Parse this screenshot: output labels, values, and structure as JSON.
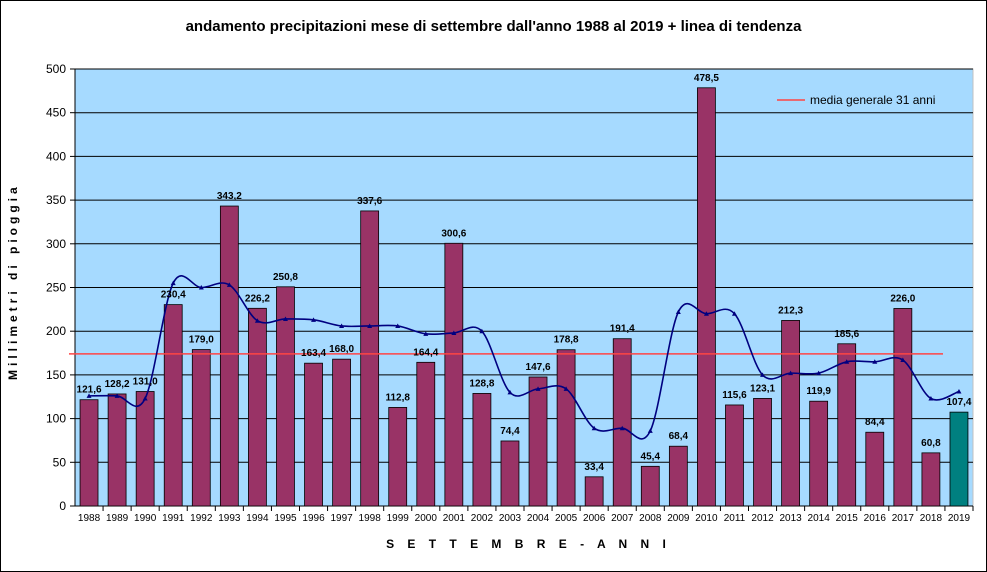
{
  "chart_data": {
    "type": "bar",
    "title": "andamento precipitazioni mese di settembre dall'anno 1988 al 2019 + linea di tendenza",
    "xlabel": "S E T T E M B R E - A N N I",
    "ylabel": "Millimetri di pioggia",
    "ylim": [
      0,
      500
    ],
    "yticks": [
      "0",
      "50",
      "100",
      "150",
      "200",
      "250",
      "300",
      "350",
      "400",
      "450",
      "500"
    ],
    "grid": true,
    "legend_position": "top-right",
    "categories": [
      "1988",
      "1989",
      "1990",
      "1991",
      "1992",
      "1993",
      "1994",
      "1995",
      "1996",
      "1997",
      "1998",
      "1999",
      "2000",
      "2001",
      "2002",
      "2003",
      "2004",
      "2005",
      "2006",
      "2007",
      "2008",
      "2009",
      "2010",
      "2011",
      "2012",
      "2013",
      "2014",
      "2015",
      "2016",
      "2017",
      "2018",
      "2019"
    ],
    "values": [
      121.6,
      128.2,
      131.0,
      230.4,
      179.0,
      343.2,
      226.2,
      250.8,
      163.4,
      168.0,
      337.6,
      112.8,
      164.4,
      300.6,
      128.8,
      74.4,
      147.6,
      178.8,
      33.4,
      191.4,
      45.4,
      68.4,
      478.5,
      115.6,
      123.1,
      212.3,
      119.9,
      185.6,
      84.4,
      226.0,
      60.8,
      107.4
    ],
    "value_labels": [
      "121,6",
      "128,2",
      "131,0",
      "230,4",
      "179,0",
      "343,2",
      "226,2",
      "250,8",
      "163,4",
      "168,0",
      "337,6",
      "112,8",
      "164,4",
      "300,6",
      "128,8",
      "74,4",
      "147,6",
      "178,8",
      "33,4",
      "191,4",
      "45,4",
      "68,4",
      "478,5",
      "115,6",
      "123,1",
      "212,3",
      "119,9",
      "185,6",
      "84,4",
      "226,0",
      "60,8",
      "107,4"
    ],
    "trend": [
      126,
      126,
      123,
      255,
      250,
      253,
      212,
      214,
      213,
      206,
      206,
      206,
      197,
      198,
      200,
      130,
      134,
      134,
      89,
      89,
      86,
      222,
      220,
      220,
      150,
      152,
      152,
      165,
      165,
      167,
      123,
      131
    ],
    "mean": 174,
    "legend": [
      {
        "name": "media generale 31 anni",
        "color": "#ff4444"
      }
    ],
    "colors": {
      "plot_bg": "#a6daff",
      "bar": "#993366",
      "bar_last": "#008080",
      "trend": "#000080",
      "mean": "#ff4444",
      "grid": "#000000"
    }
  }
}
